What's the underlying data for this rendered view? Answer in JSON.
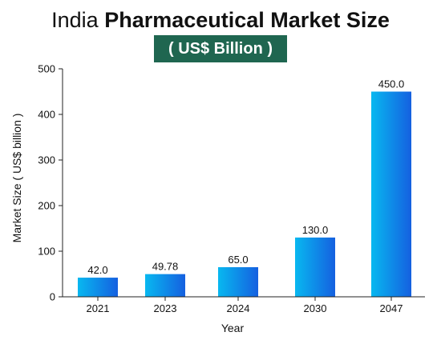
{
  "header": {
    "title_prefix": "India",
    "title_bold": "Pharmaceutical Market Size",
    "subtitle": "( US$ Billion )"
  },
  "chart_data": {
    "type": "bar",
    "categories": [
      "2021",
      "2023",
      "2024",
      "2030",
      "2047"
    ],
    "values": [
      42.0,
      49.78,
      65.0,
      130.0,
      450.0
    ],
    "value_labels": [
      "42.0",
      "49.78",
      "65.0",
      "130.0",
      "450.0"
    ],
    "xlabel": "Year",
    "ylabel": "Market Size ( US$ billion )",
    "ylim": [
      0,
      500
    ],
    "yticks": [
      0,
      100,
      200,
      300,
      400,
      500
    ],
    "grid": false,
    "legend": "none",
    "bar_gradient": [
      "#08b8f0",
      "#1560e0"
    ]
  }
}
